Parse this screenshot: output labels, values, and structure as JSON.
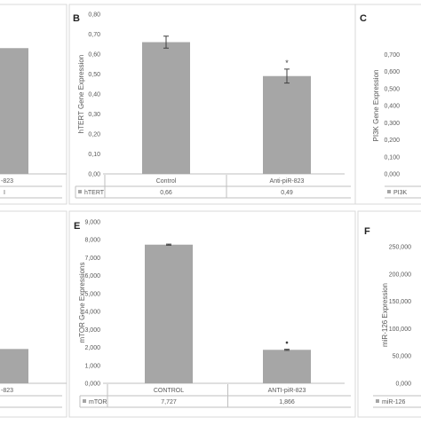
{
  "chart_data": [
    {
      "panel": "A",
      "type": "bar",
      "letter_visible": false,
      "ylabel": "",
      "categories": [
        "",
        "-823"
      ],
      "series_label": "I",
      "values_text": [
        "",
        ""
      ],
      "values": [
        null,
        0.63
      ],
      "ylim": [
        0,
        0.8
      ],
      "yticks": [],
      "error": [
        null,
        null
      ],
      "star": [
        false,
        false
      ],
      "grid": false
    },
    {
      "panel": "B",
      "type": "bar",
      "letter_visible": true,
      "ylabel": "hTERT Gene Expression",
      "categories": [
        "Control",
        "Anti-piR-823"
      ],
      "series_label": "hTERT",
      "values_text": [
        "0,66",
        "0,49"
      ],
      "values": [
        0.66,
        0.49
      ],
      "ylim": [
        0,
        0.8
      ],
      "yticks": [
        "0,00",
        "0,10",
        "0,20",
        "0,30",
        "0,40",
        "0,50",
        "0,60",
        "0,70",
        "0,80"
      ],
      "error": [
        0.03,
        0.035
      ],
      "star": [
        false,
        true
      ],
      "grid": false
    },
    {
      "panel": "C",
      "type": "bar",
      "letter_visible": true,
      "ylabel": "PI3K Gene Expression",
      "categories": [],
      "series_label": "PI3K",
      "values_text": [],
      "values": [],
      "ylim": [
        0,
        0.8
      ],
      "yticks": [
        "0,000",
        "0,100",
        "0,200",
        "0,300",
        "0,400",
        "0,500",
        "0,600",
        "0,700"
      ],
      "error": [],
      "star": [],
      "grid": false
    },
    {
      "panel": "D",
      "type": "bar",
      "letter_visible": false,
      "ylabel": "",
      "categories": [
        "",
        "-823"
      ],
      "series_label": "",
      "values_text": [
        "",
        ""
      ],
      "values": [
        null,
        1.7
      ],
      "ylim": [
        0,
        8
      ],
      "yticks": [],
      "error": [
        null,
        null
      ],
      "star": [
        false,
        false
      ],
      "grid": false
    },
    {
      "panel": "E",
      "type": "bar",
      "letter_visible": true,
      "ylabel": "mTOR Gene Expressions",
      "categories": [
        "CONTROL",
        "ANTI-piR-823"
      ],
      "series_label": "mTOR",
      "values_text": [
        "7,727",
        "1,866"
      ],
      "values": [
        7.727,
        1.866
      ],
      "ylim": [
        0,
        9
      ],
      "yticks": [
        "0,000",
        "1,000",
        "2,000",
        "3,000",
        "4,000",
        "5,000",
        "6,000",
        "7,000",
        "8,000",
        "9,000"
      ],
      "error": [
        0.03,
        0.03
      ],
      "star": [
        false,
        true
      ],
      "grid": false
    },
    {
      "panel": "F",
      "type": "bar",
      "letter_visible": true,
      "ylabel": "miR-126 Expression",
      "categories": [],
      "series_label": "miR-126",
      "values_text": [],
      "values": [],
      "ylim": [
        0,
        250
      ],
      "yticks": [
        "0,000",
        "50,000",
        "100,000",
        "150,000",
        "200,000",
        "250,000"
      ],
      "error": [],
      "star": [],
      "grid": false
    }
  ],
  "colors": {
    "bar": "#a6a6a6",
    "axis": "#bfbfbf",
    "text": "#595959",
    "legend_swatch": "#a6a6a6"
  },
  "star_symbol": "*",
  "dot_symbol": "•"
}
